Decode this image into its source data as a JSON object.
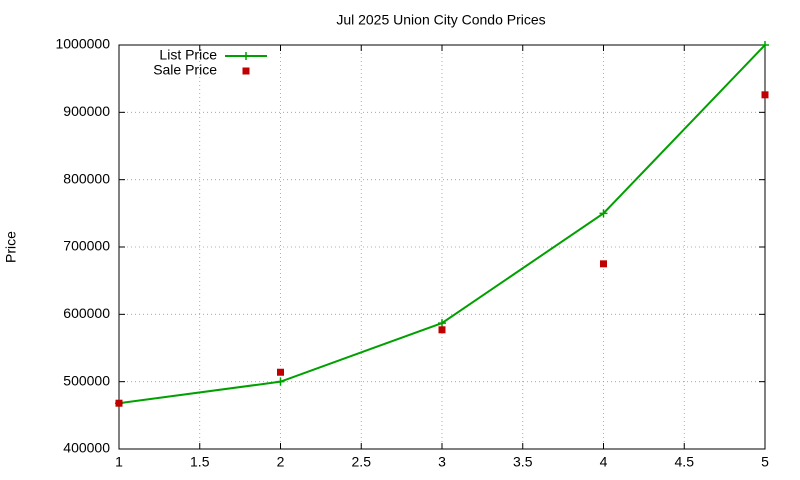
{
  "chart_data": {
    "type": "line",
    "title": "Jul 2025 Union City Condo Prices",
    "y_label": "Price",
    "x": [
      1,
      2,
      3,
      4,
      5
    ],
    "series": [
      {
        "name": "List Price",
        "color": "#00a000",
        "marker": "plus",
        "line": true,
        "values": [
          468000,
          500000,
          587000,
          750000,
          1000000
        ]
      },
      {
        "name": "Sale Price",
        "color": "#c00000",
        "marker": "square",
        "line": false,
        "values": [
          468000,
          514000,
          577000,
          675000,
          926000
        ]
      }
    ],
    "xlim": [
      1,
      5
    ],
    "xticks": [
      1,
      1.5,
      2,
      2.5,
      3,
      3.5,
      4,
      4.5,
      5
    ],
    "ylim": [
      400000,
      1000000
    ],
    "yticks": [
      400000,
      500000,
      600000,
      700000,
      800000,
      900000,
      1000000
    ],
    "grid": true,
    "legend": "top-left"
  }
}
